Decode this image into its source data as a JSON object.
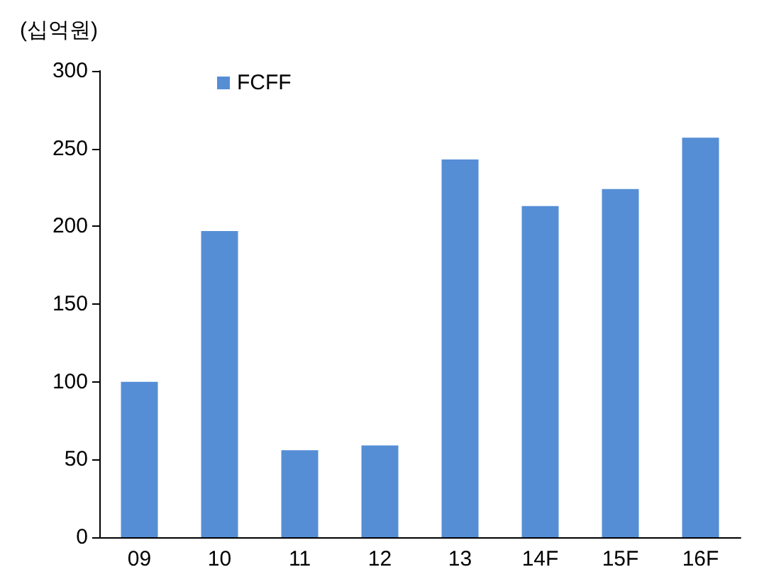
{
  "chart_data": {
    "type": "bar",
    "ylabel": "(십억원)",
    "categories": [
      "09",
      "10",
      "11",
      "12",
      "13",
      "14F",
      "15F",
      "16F"
    ],
    "series": [
      {
        "name": "FCFF",
        "color": "#558ed5",
        "values": [
          100,
          197,
          56,
          59,
          243,
          213,
          224,
          257
        ]
      }
    ],
    "ylim": [
      0,
      300
    ],
    "yticks": [
      0,
      50,
      100,
      150,
      200,
      250,
      300
    ],
    "grid": false,
    "legend": "top left"
  }
}
